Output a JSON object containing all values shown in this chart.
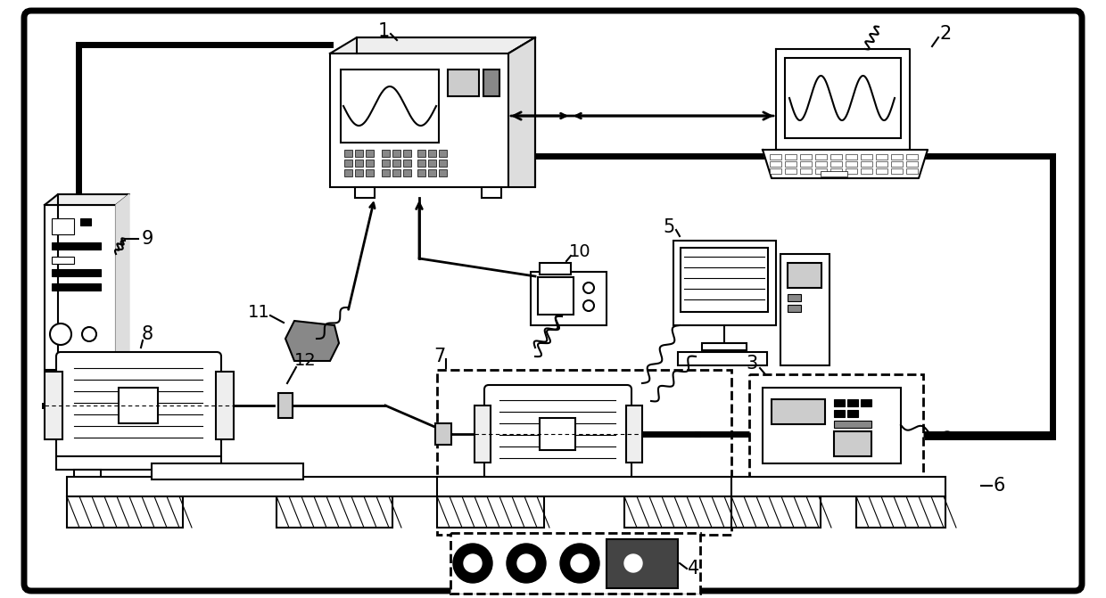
{
  "bg_color": "#ffffff",
  "lw_thick": 5,
  "lw_med": 2,
  "lw_thin": 1.5,
  "lw_hair": 0.8
}
